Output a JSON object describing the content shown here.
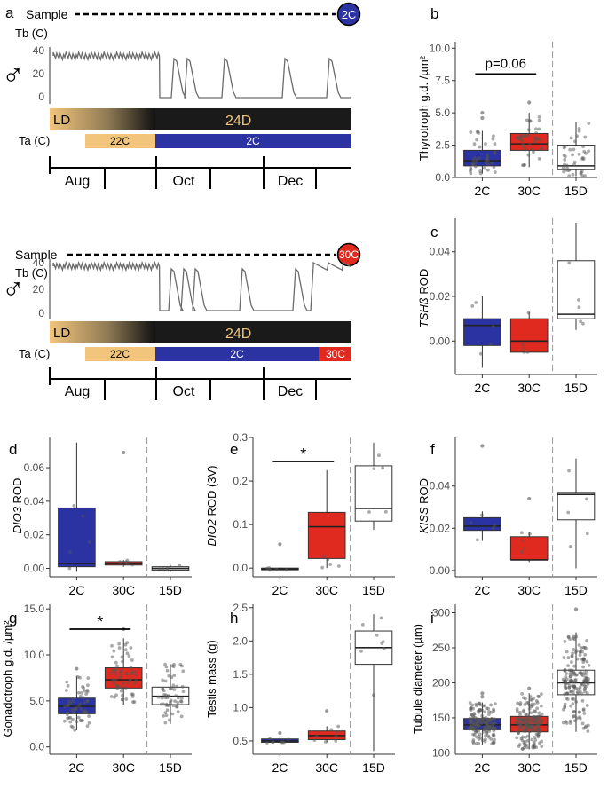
{
  "colors": {
    "c2C": "#2b33a3",
    "c30C": "#e02a1f",
    "c15D": "#ffffff",
    "ld_dark": "#1a1a1a",
    "ld_light": "#f2c57c",
    "trace": "#6b6b6b"
  },
  "timeline": {
    "a": {
      "letter": "a",
      "sample": "Sample",
      "sample_badge": "2C",
      "tb": "Tb (C)",
      "tb_ticks": [
        "40",
        "20",
        "0"
      ],
      "symbol": "♂",
      "ld": "LD",
      "d24": "24D",
      "ta": "Ta (C)",
      "ta_segments": [
        {
          "label": "22C",
          "color": "#f2c57c"
        },
        {
          "label": "2C",
          "color": "#2b33a3"
        }
      ],
      "months": [
        "Aug",
        "Oct",
        "Dec"
      ]
    },
    "b": {
      "letter": "",
      "sample": "Sample",
      "sample_badge": "30C",
      "tb": "Tb (C)",
      "tb_ticks": [
        "40",
        "20",
        "0"
      ],
      "symbol": "♂",
      "ld": "LD",
      "d24": "24D",
      "ta": "Ta (C)",
      "ta_segments": [
        {
          "label": "22C",
          "color": "#f2c57c"
        },
        {
          "label": "2C",
          "color": "#2b33a3"
        },
        {
          "label": "30C",
          "color": "#e02a1f"
        }
      ],
      "months": [
        "Aug",
        "Oct",
        "Dec"
      ]
    }
  },
  "chart_data": [
    {
      "id": "b",
      "letter": "b",
      "type": "box",
      "ylabel": "Thyrotroph g.d. /µm²",
      "ylim": [
        0,
        10.5
      ],
      "yticks": [
        "0.0",
        "2.5",
        "5.0",
        "7.5",
        "10.0"
      ],
      "ytick_values": [
        0,
        2.5,
        5,
        7.5,
        10
      ],
      "categories": [
        "2C",
        "30C",
        "15D"
      ],
      "points": true,
      "npts": 40,
      "boxes": [
        {
          "name": "2C",
          "q1": 0.9,
          "median": 1.3,
          "q3": 2.1,
          "low": 0.3,
          "high": 3.6,
          "outliers": [
            4.6,
            5.0
          ]
        },
        {
          "name": "30C",
          "q1": 2.1,
          "median": 2.6,
          "q3": 3.4,
          "low": 0.8,
          "high": 5.0,
          "outliers": [
            5.8
          ]
        },
        {
          "name": "15D",
          "q1": 0.6,
          "median": 0.9,
          "q3": 2.5,
          "low": 0.1,
          "high": 4.3,
          "outliers": []
        }
      ],
      "annotation": {
        "text": "p=0.06",
        "from": 0,
        "to": 1,
        "y": 8.0
      }
    },
    {
      "id": "c",
      "letter": "c",
      "type": "box",
      "ylabel": "TSHß ROD",
      "ylabel_italic": "TSHß",
      "ylabel_rest": " ROD",
      "ylim": [
        -0.015,
        0.055
      ],
      "yticks": [
        "0.00",
        "0.02",
        "0.04"
      ],
      "ytick_values": [
        0,
        0.02,
        0.04
      ],
      "categories": [
        "2C",
        "30C",
        "15D"
      ],
      "points": false,
      "npts": 5,
      "boxes": [
        {
          "name": "2C",
          "q1": -0.002,
          "median": 0.007,
          "q3": 0.01,
          "low": -0.012,
          "high": 0.02,
          "outliers": []
        },
        {
          "name": "30C",
          "q1": -0.005,
          "median": 0.0,
          "q3": 0.01,
          "low": -0.005,
          "high": 0.013,
          "outliers": []
        },
        {
          "name": "15D",
          "q1": 0.01,
          "median": 0.012,
          "q3": 0.036,
          "low": 0.005,
          "high": 0.053,
          "outliers": []
        }
      ]
    },
    {
      "id": "d",
      "letter": "d",
      "type": "box",
      "ylabel": "DIO3 ROD",
      "ylabel_italic": "DIO3",
      "ylabel_rest": " ROD",
      "ylim": [
        -0.005,
        0.078
      ],
      "yticks": [
        "0.00",
        "0.02",
        "0.04",
        "0.06"
      ],
      "ytick_values": [
        0,
        0.02,
        0.04,
        0.06
      ],
      "categories": [
        "2C",
        "30C",
        "15D"
      ],
      "points": false,
      "npts": 5,
      "boxes": [
        {
          "name": "2C",
          "q1": 0.001,
          "median": 0.003,
          "q3": 0.036,
          "low": -0.002,
          "high": 0.075,
          "outliers": []
        },
        {
          "name": "30C",
          "q1": 0.002,
          "median": 0.003,
          "q3": 0.004,
          "low": 0.001,
          "high": 0.005,
          "outliers": [
            0.069
          ]
        },
        {
          "name": "15D",
          "q1": -0.001,
          "median": 0.0,
          "q3": 0.001,
          "low": -0.002,
          "high": 0.002,
          "outliers": []
        }
      ]
    },
    {
      "id": "e",
      "letter": "e",
      "type": "box",
      "ylabel": "DIO2 ROD (3V)",
      "ylabel_italic": "DIO2",
      "ylabel_rest": " ROD (3V)",
      "ylim": [
        -0.02,
        0.3
      ],
      "yticks": [
        "0.0",
        "0.1",
        "0.2",
        "0.3"
      ],
      "ytick_values": [
        0,
        0.1,
        0.2,
        0.3
      ],
      "categories": [
        "2C",
        "30C",
        "15D"
      ],
      "points": false,
      "npts": 5,
      "boxes": [
        {
          "name": "2C",
          "q1": -0.004,
          "median": -0.002,
          "q3": 0.0,
          "low": -0.005,
          "high": 0.001,
          "outliers": [
            0.055
          ]
        },
        {
          "name": "30C",
          "q1": 0.022,
          "median": 0.095,
          "q3": 0.128,
          "low": 0.0,
          "high": 0.225,
          "outliers": []
        },
        {
          "name": "15D",
          "q1": 0.108,
          "median": 0.137,
          "q3": 0.235,
          "low": 0.088,
          "high": 0.288,
          "outliers": []
        }
      ],
      "annotation": {
        "text": "*",
        "from": 0,
        "to": 1,
        "y": 0.245
      }
    },
    {
      "id": "f",
      "letter": "f",
      "type": "box",
      "ylabel": "KISS ROD",
      "ylabel_italic": "KISS",
      "ylabel_rest": " ROD",
      "ylim": [
        -0.003,
        0.063
      ],
      "yticks": [
        "0.00",
        "0.02",
        "0.04"
      ],
      "ytick_values": [
        0,
        0.02,
        0.04
      ],
      "categories": [
        "2C",
        "30C",
        "15D"
      ],
      "points": false,
      "npts": 5,
      "boxes": [
        {
          "name": "2C",
          "q1": 0.019,
          "median": 0.021,
          "q3": 0.025,
          "low": 0.014,
          "high": 0.028,
          "outliers": [
            0.059
          ]
        },
        {
          "name": "30C",
          "q1": 0.005,
          "median": 0.005,
          "q3": 0.016,
          "low": 0.004,
          "high": 0.018,
          "outliers": [
            0.034
          ]
        },
        {
          "name": "15D",
          "q1": 0.024,
          "median": 0.036,
          "q3": 0.037,
          "low": 0.001,
          "high": 0.053,
          "outliers": []
        }
      ]
    },
    {
      "id": "g",
      "letter": "g",
      "type": "box",
      "ylabel": "Gonadotroph g.d. /µm²",
      "ylim": [
        -0.8,
        15.5
      ],
      "yticks": [
        "0.0",
        "5.0",
        "10.0",
        "15.0"
      ],
      "ytick_values": [
        0,
        5,
        10,
        15
      ],
      "categories": [
        "2C",
        "30C",
        "15D"
      ],
      "points": true,
      "npts": 60,
      "boxes": [
        {
          "name": "2C",
          "q1": 3.6,
          "median": 4.4,
          "q3": 5.3,
          "low": 1.8,
          "high": 7.7,
          "outliers": [
            8.5
          ]
        },
        {
          "name": "30C",
          "q1": 6.4,
          "median": 7.3,
          "q3": 8.6,
          "low": 4.6,
          "high": 11.8,
          "outliers": [
            12.8
          ]
        },
        {
          "name": "15D",
          "q1": 4.6,
          "median": 5.5,
          "q3": 6.5,
          "low": 2.5,
          "high": 9.0,
          "outliers": []
        }
      ],
      "annotation": {
        "text": "*",
        "from": 0,
        "to": 1,
        "y": 12.8
      }
    },
    {
      "id": "h",
      "letter": "h",
      "type": "box",
      "ylabel": "Testis mass (g)",
      "ylim": [
        0.3,
        2.55
      ],
      "yticks": [
        "0.5",
        "1.0",
        "1.5",
        "2.0",
        "2.5"
      ],
      "ytick_values": [
        0.5,
        1.0,
        1.5,
        2.0,
        2.5
      ],
      "categories": [
        "2C",
        "30C",
        "15D"
      ],
      "points": true,
      "npts": 8,
      "boxes": [
        {
          "name": "2C",
          "q1": 0.48,
          "median": 0.5,
          "q3": 0.53,
          "low": 0.45,
          "high": 0.55,
          "outliers": [
            0.62
          ]
        },
        {
          "name": "30C",
          "q1": 0.52,
          "median": 0.58,
          "q3": 0.65,
          "low": 0.48,
          "high": 0.72,
          "outliers": [
            0.95
          ]
        },
        {
          "name": "15D",
          "q1": 1.65,
          "median": 1.9,
          "q3": 2.15,
          "low": 0.35,
          "high": 2.4,
          "outliers": []
        }
      ]
    },
    {
      "id": "i",
      "letter": "i",
      "type": "box",
      "ylabel": "Tubule diameter (µm)",
      "ylim": [
        98,
        312
      ],
      "yticks": [
        "100",
        "150",
        "200",
        "250",
        "300"
      ],
      "ytick_values": [
        100,
        150,
        200,
        250,
        300
      ],
      "categories": [
        "2C",
        "30C",
        "15D"
      ],
      "points": true,
      "npts": 170,
      "boxes": [
        {
          "name": "2C",
          "q1": 133,
          "median": 140,
          "q3": 149,
          "low": 112,
          "high": 172,
          "outliers": [
            180,
            185
          ]
        },
        {
          "name": "30C",
          "q1": 130,
          "median": 140,
          "q3": 152,
          "low": 105,
          "high": 185,
          "outliers": [
            192
          ]
        },
        {
          "name": "15D",
          "q1": 183,
          "median": 200,
          "q3": 218,
          "low": 130,
          "high": 272,
          "outliers": [
            305
          ]
        }
      ]
    }
  ]
}
